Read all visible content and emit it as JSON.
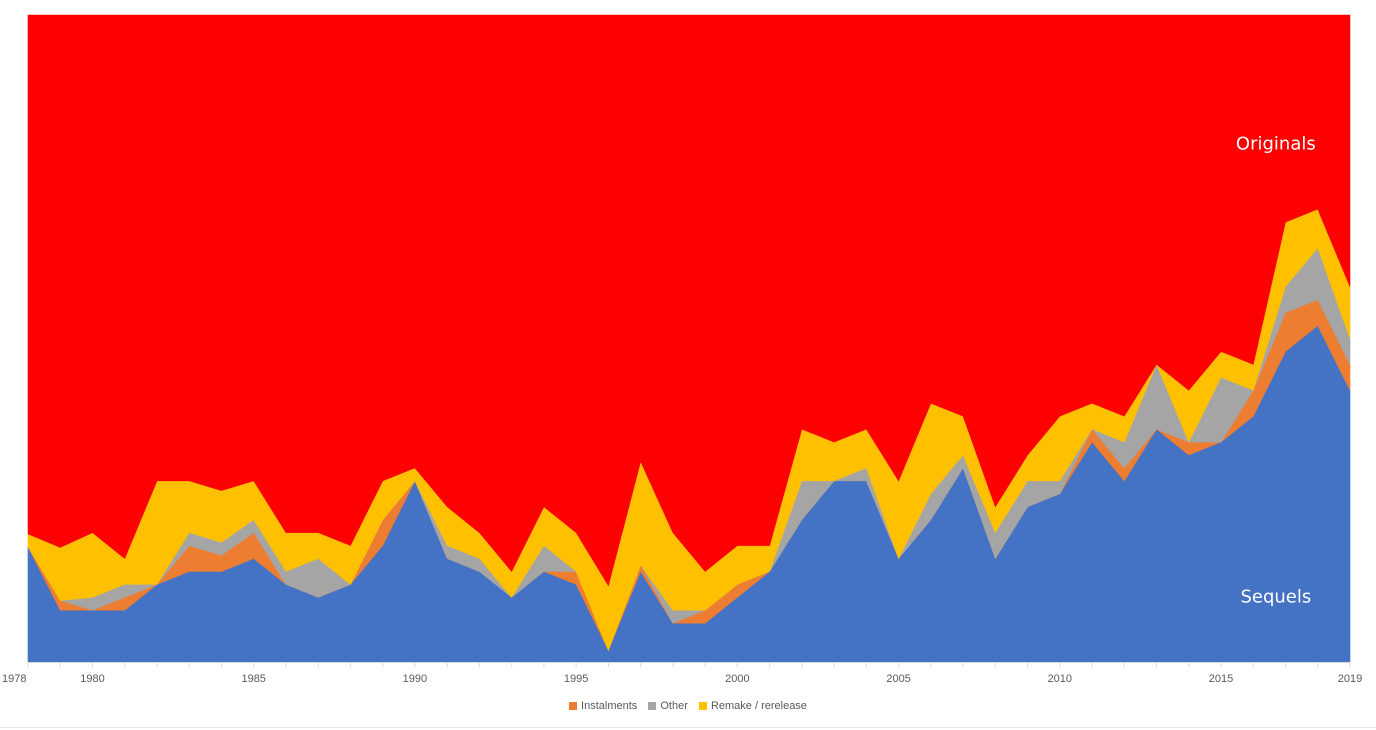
{
  "chart_data": {
    "type": "area",
    "stacked": true,
    "percent": true,
    "x": [
      1978,
      1979,
      1980,
      1981,
      1982,
      1983,
      1984,
      1985,
      1986,
      1987,
      1988,
      1989,
      1990,
      1991,
      1992,
      1993,
      1994,
      1995,
      1996,
      1997,
      1998,
      1999,
      2000,
      2001,
      2002,
      2003,
      2004,
      2005,
      2006,
      2007,
      2008,
      2009,
      2010,
      2011,
      2012,
      2013,
      2014,
      2015,
      2016,
      2017,
      2018,
      2019
    ],
    "xticks": [
      "1978",
      "1980",
      "1985",
      "1990",
      "1995",
      "2000",
      "2005",
      "2010",
      "2015",
      "2019"
    ],
    "ylim": [
      0,
      100
    ],
    "series": [
      {
        "name": "Sequels",
        "color": "#4472c4",
        "values": [
          17.8,
          8.0,
          8.0,
          8.0,
          12.0,
          14.0,
          14.0,
          16.0,
          12.0,
          10.0,
          12.0,
          18.0,
          28.0,
          16.0,
          14.0,
          10.0,
          14.0,
          12.0,
          1.8,
          14.0,
          6.0,
          6.0,
          10.0,
          14.0,
          22.0,
          28.0,
          28.0,
          16.0,
          22.0,
          30.0,
          16.0,
          24.0,
          26.0,
          34.0,
          28.0,
          36.0,
          32.0,
          34.0,
          38.0,
          48.0,
          52.0,
          42.0
        ]
      },
      {
        "name": "Instalments",
        "color": "#ed7d31",
        "values": [
          0.0,
          1.5,
          0.0,
          2.0,
          0.0,
          4.0,
          2.5,
          4.0,
          0.0,
          0.0,
          0.0,
          4.0,
          0.0,
          0.0,
          0.0,
          0.0,
          0.0,
          2.0,
          0.0,
          1.0,
          0.0,
          2.0,
          2.0,
          0.0,
          0.0,
          0.0,
          0.0,
          0.0,
          0.0,
          0.0,
          0.0,
          0.0,
          0.0,
          2.0,
          2.0,
          0.0,
          2.0,
          0.0,
          4.0,
          6.0,
          4.0,
          4.0
        ]
      },
      {
        "name": "Other",
        "color": "#a5a5a5",
        "values": [
          0.0,
          0.0,
          2.0,
          2.0,
          0.0,
          2.0,
          2.0,
          2.0,
          2.0,
          6.0,
          0.0,
          0.0,
          0.0,
          2.0,
          2.0,
          0.0,
          4.0,
          0.0,
          0.0,
          0.0,
          2.0,
          0.0,
          0.0,
          0.0,
          6.0,
          0.0,
          2.0,
          0.0,
          4.0,
          2.0,
          4.0,
          4.0,
          2.0,
          0.0,
          4.0,
          10.0,
          0.0,
          10.0,
          0.0,
          4.0,
          8.0,
          4.0
        ]
      },
      {
        "name": "Remake / rerelease",
        "color": "#ffc000",
        "values": [
          2.0,
          8.2,
          10.0,
          4.0,
          16.0,
          8.0,
          8.0,
          6.0,
          6.0,
          4.0,
          6.0,
          6.0,
          2.0,
          6.0,
          4.0,
          4.0,
          6.0,
          6.0,
          10.0,
          16.0,
          12.0,
          6.0,
          6.0,
          4.0,
          8.0,
          6.0,
          6.0,
          12.0,
          14.0,
          6.0,
          4.0,
          4.0,
          10.0,
          4.0,
          4.0,
          0.0,
          8.0,
          4.0,
          4.0,
          10.0,
          6.0,
          8.0
        ]
      },
      {
        "name": "Originals",
        "color": "#ff0000",
        "values": [
          80.2,
          82.3,
          80.0,
          84.0,
          72.0,
          72.0,
          73.5,
          72.0,
          80.0,
          80.0,
          82.0,
          72.0,
          70.0,
          76.0,
          80.0,
          86.0,
          76.0,
          80.0,
          88.2,
          69.0,
          80.0,
          86.0,
          82.0,
          82.0,
          64.0,
          66.0,
          64.0,
          72.0,
          60.0,
          62.0,
          76.0,
          68.0,
          62.0,
          60.0,
          62.0,
          54.0,
          58.0,
          52.0,
          54.0,
          32.0,
          30.0,
          42.0
        ]
      }
    ],
    "annotations": [
      {
        "text": "Originals",
        "x": 2016.7,
        "y": 80.0
      },
      {
        "text": "Sequels",
        "x": 2016.7,
        "y": 10.0
      }
    ],
    "legend": {
      "position": "bottom",
      "items": [
        "Instalments",
        "Other",
        "Remake / rerelease"
      ]
    },
    "grid": false
  }
}
